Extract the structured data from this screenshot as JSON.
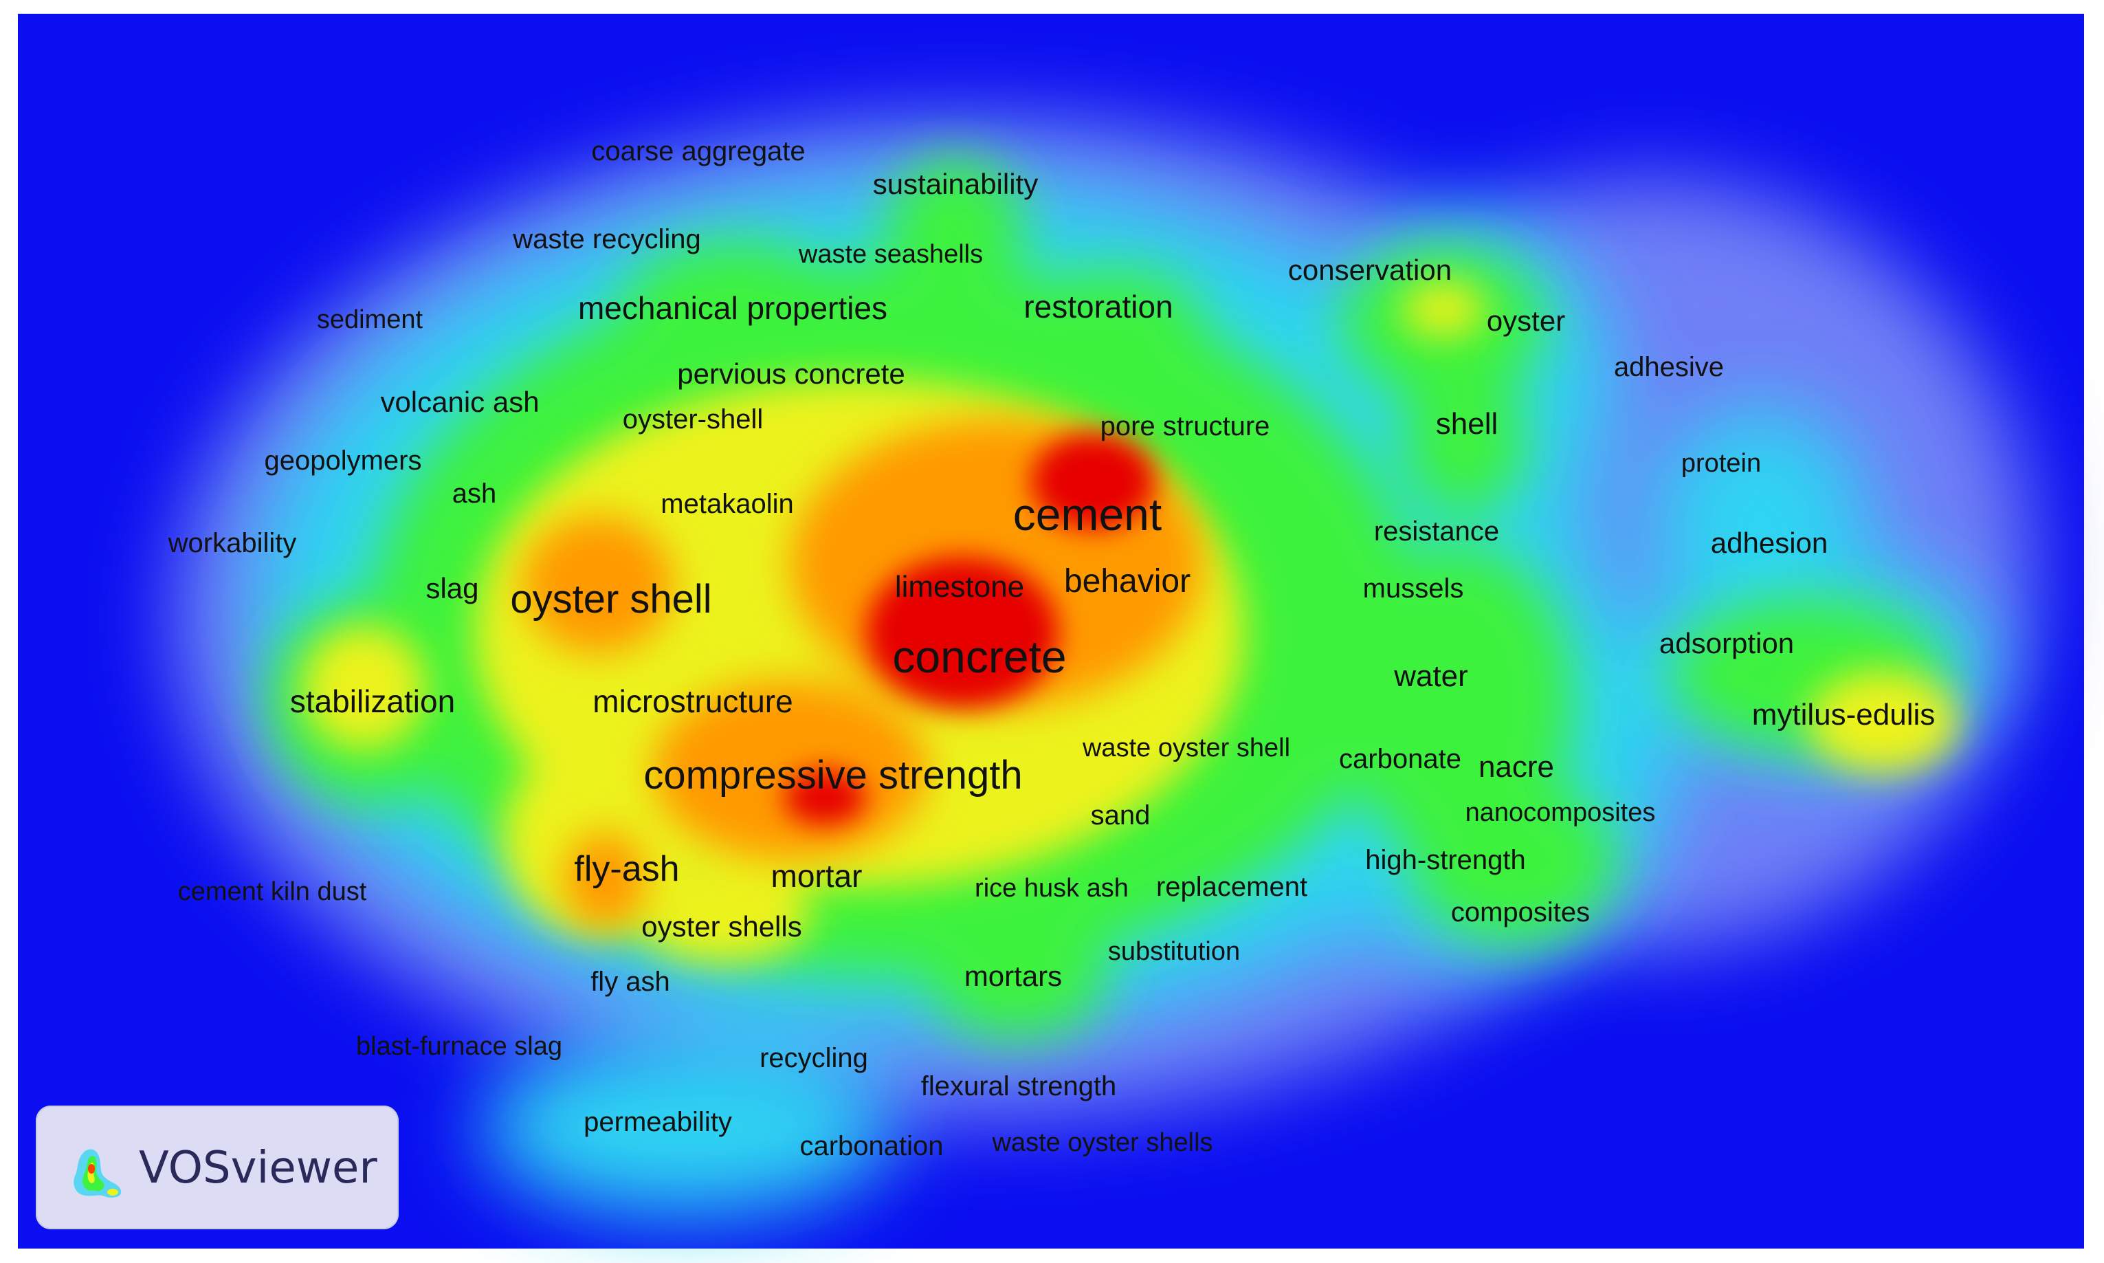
{
  "view": "density visualization",
  "colors": {
    "background": "#0a0ef0",
    "scale": [
      "#0a0ef0",
      "#28d8f4",
      "#3cf23c",
      "#e8f018",
      "#ff9a00",
      "#e60000"
    ]
  },
  "keywords": [
    {
      "id": "concrete",
      "label": "concrete",
      "density": 1.0
    },
    {
      "id": "cement",
      "label": "cement",
      "density": 0.95
    },
    {
      "id": "compressive-strength",
      "label": "compressive strength",
      "density": 0.85
    },
    {
      "id": "oyster-shell",
      "label": "oyster shell",
      "density": 0.8
    },
    {
      "id": "behavior",
      "label": "behavior",
      "density": 0.75
    },
    {
      "id": "limestone",
      "label": "limestone",
      "density": 0.75
    },
    {
      "id": "microstructure",
      "label": "microstructure",
      "density": 0.6
    },
    {
      "id": "fly-ash-hyphen",
      "label": "fly-ash",
      "density": 0.7
    },
    {
      "id": "mortar",
      "label": "mortar",
      "density": 0.6
    },
    {
      "id": "stabilization",
      "label": "stabilization",
      "density": 0.6
    },
    {
      "id": "slag",
      "label": "slag",
      "density": 0.55
    },
    {
      "id": "metakaolin",
      "label": "metakaolin",
      "density": 0.45
    },
    {
      "id": "ash",
      "label": "ash",
      "density": 0.45
    },
    {
      "id": "waste-oyster-shell",
      "label": "waste oyster shell",
      "density": 0.45
    },
    {
      "id": "sand",
      "label": "sand",
      "density": 0.4
    },
    {
      "id": "oyster-shells",
      "label": "oyster shells",
      "density": 0.5
    },
    {
      "id": "rice-husk-ash",
      "label": "rice husk ash",
      "density": 0.4
    },
    {
      "id": "replacement",
      "label": "replacement",
      "density": 0.4
    },
    {
      "id": "mortars",
      "label": "mortars",
      "density": 0.4
    },
    {
      "id": "fly-ash",
      "label": "fly ash",
      "density": 0.35
    },
    {
      "id": "substitution",
      "label": "substitution",
      "density": 0.3
    },
    {
      "id": "pore-structure",
      "label": "pore structure",
      "density": 0.45
    },
    {
      "id": "oyster-shell-hyphen",
      "label": "oyster-shell",
      "density": 0.4
    },
    {
      "id": "pervious-concrete",
      "label": "pervious concrete",
      "density": 0.35
    },
    {
      "id": "mechanical-properties",
      "label": "mechanical properties",
      "density": 0.5
    },
    {
      "id": "restoration",
      "label": "restoration",
      "density": 0.5
    },
    {
      "id": "waste-seashells",
      "label": "waste seashells",
      "density": 0.35
    },
    {
      "id": "sustainability",
      "label": "sustainability",
      "density": 0.4
    },
    {
      "id": "coarse-aggregate",
      "label": "coarse aggregate",
      "density": 0.25
    },
    {
      "id": "waste-recycling",
      "label": "waste recycling",
      "density": 0.3
    },
    {
      "id": "sediment",
      "label": "sediment",
      "density": 0.25
    },
    {
      "id": "volcanic-ash",
      "label": "volcanic ash",
      "density": 0.35
    },
    {
      "id": "geopolymers",
      "label": "geopolymers",
      "density": 0.3
    },
    {
      "id": "workability",
      "label": "workability",
      "density": 0.2
    },
    {
      "id": "cement-kiln-dust",
      "label": "cement kiln dust",
      "density": 0.15
    },
    {
      "id": "blast-furnace-slag",
      "label": "blast-furnace slag",
      "density": 0.2
    },
    {
      "id": "permeability",
      "label": "permeability",
      "density": 0.25
    },
    {
      "id": "recycling",
      "label": "recycling",
      "density": 0.3
    },
    {
      "id": "flexural-strength",
      "label": "flexural strength",
      "density": 0.3
    },
    {
      "id": "carbonation",
      "label": "carbonation",
      "density": 0.25
    },
    {
      "id": "waste-oyster-shells",
      "label": "waste oyster shells",
      "density": 0.25
    },
    {
      "id": "conservation",
      "label": "conservation",
      "density": 0.45
    },
    {
      "id": "oyster",
      "label": "oyster",
      "density": 0.45
    },
    {
      "id": "shell",
      "label": "shell",
      "density": 0.5
    },
    {
      "id": "adhesive",
      "label": "adhesive",
      "density": 0.25
    },
    {
      "id": "protein",
      "label": "protein",
      "density": 0.3
    },
    {
      "id": "adhesion",
      "label": "adhesion",
      "density": 0.4
    },
    {
      "id": "resistance",
      "label": "resistance",
      "density": 0.4
    },
    {
      "id": "mussels",
      "label": "mussels",
      "density": 0.4
    },
    {
      "id": "water",
      "label": "water",
      "density": 0.45
    },
    {
      "id": "adsorption",
      "label": "adsorption",
      "density": 0.45
    },
    {
      "id": "mytilus-edulis",
      "label": "mytilus-edulis",
      "density": 0.6
    },
    {
      "id": "carbonate",
      "label": "carbonate",
      "density": 0.4
    },
    {
      "id": "nacre",
      "label": "nacre",
      "density": 0.4
    },
    {
      "id": "nanocomposites",
      "label": "nanocomposites",
      "density": 0.35
    },
    {
      "id": "high-strength",
      "label": "high-strength",
      "density": 0.35
    },
    {
      "id": "composites",
      "label": "composites",
      "density": 0.3
    }
  ],
  "logo": {
    "text": "VOSviewer"
  }
}
